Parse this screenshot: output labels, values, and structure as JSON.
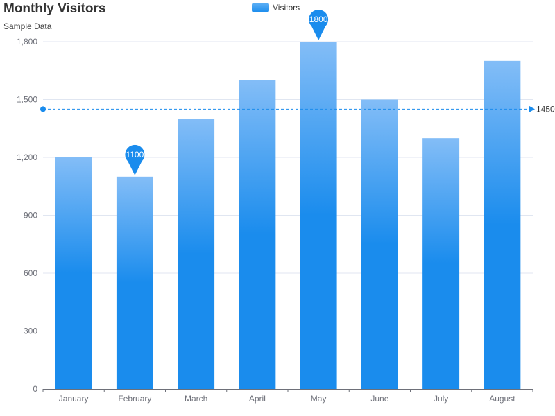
{
  "chart_data": {
    "type": "bar",
    "title": "Monthly Visitors",
    "subtitle": "Sample Data",
    "legend": "top-center",
    "grid": true,
    "xlabel": "",
    "ylabel": "",
    "ylim": [
      0,
      1800
    ],
    "yticks": [
      0,
      300,
      600,
      900,
      1200,
      1500,
      1800
    ],
    "ytick_labels": [
      "0",
      "300",
      "600",
      "900",
      "1,200",
      "1,500",
      "1,800"
    ],
    "categories": [
      "January",
      "February",
      "March",
      "April",
      "May",
      "June",
      "July",
      "August"
    ],
    "series": [
      {
        "name": "Visitors",
        "values": [
          1200,
          1100,
          1400,
          1600,
          1800,
          1500,
          1300,
          1700
        ]
      }
    ],
    "mark_points": [
      {
        "category": "February",
        "value": 1100,
        "label": "1100"
      },
      {
        "category": "May",
        "value": 1800,
        "label": "1800"
      }
    ],
    "mark_line": {
      "value": 1450,
      "label": "1450"
    },
    "colors": {
      "bar_top": "#83bdf7",
      "bar_bottom": "#1a8ced",
      "pin": "#1a8ced",
      "axis": "#6e7079",
      "grid": "#e0e6f1",
      "text": "#6e7079"
    }
  }
}
